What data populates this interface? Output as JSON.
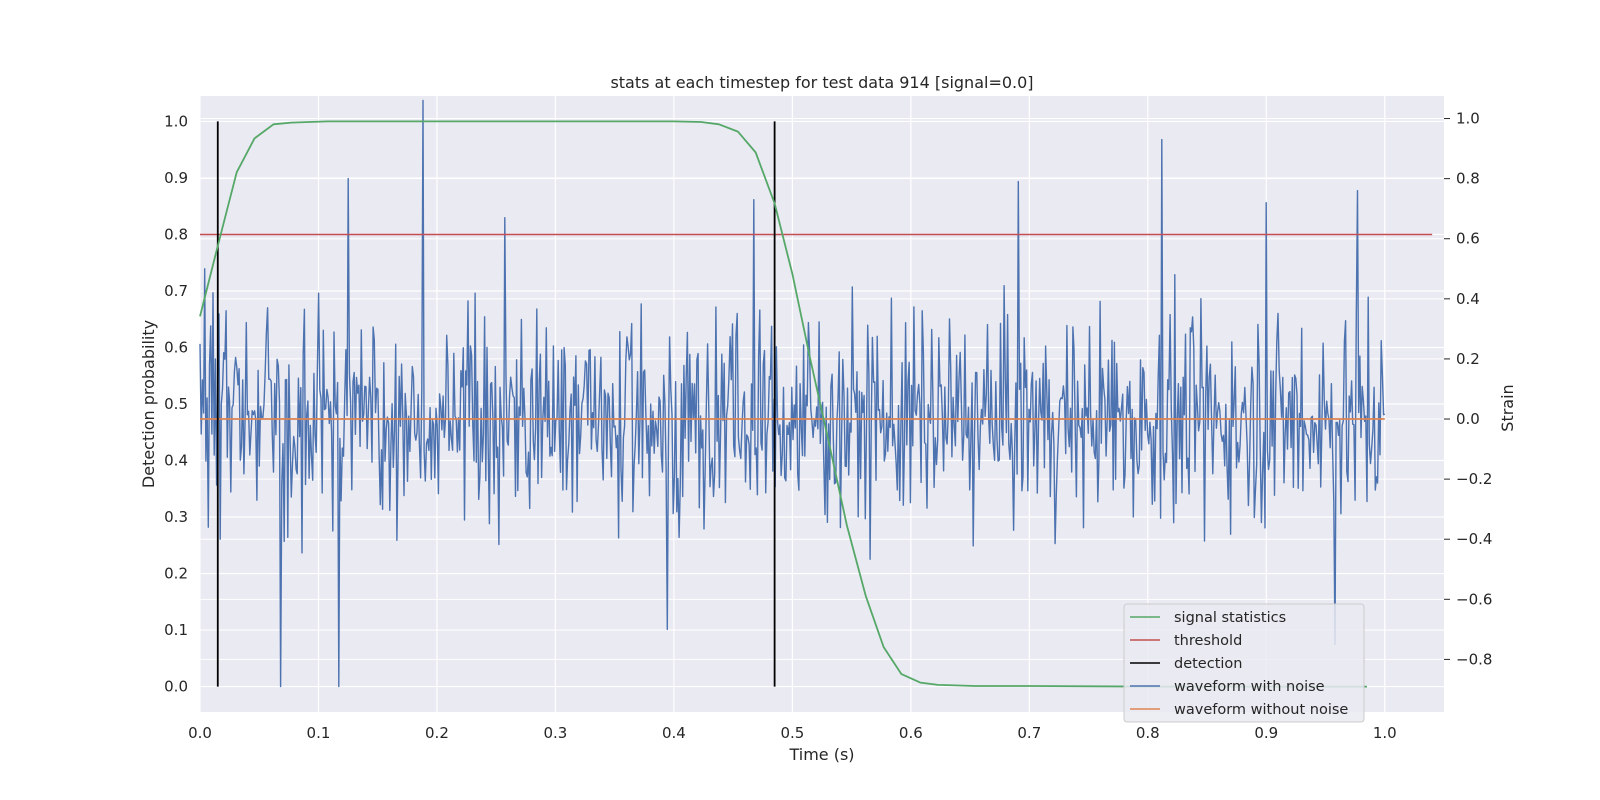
{
  "chart_data": {
    "type": "line",
    "title": "stats at each timestep for test data 914 [signal=0.0]",
    "xlabel": "Time (s)",
    "ylabel_left": "Detection probability",
    "ylabel_right": "Strain",
    "xlim": [
      0.0,
      1.05
    ],
    "ylim_left": [
      -0.045,
      1.045
    ],
    "ylim_right": [
      -0.975,
      1.075
    ],
    "x_ticks": [
      0.0,
      0.1,
      0.2,
      0.3,
      0.4,
      0.5,
      0.6,
      0.7,
      0.8,
      0.9,
      1.0
    ],
    "x_tick_labels": [
      "0.0",
      "0.1",
      "0.2",
      "0.3",
      "0.4",
      "0.5",
      "0.6",
      "0.7",
      "0.8",
      "0.9",
      "1.0"
    ],
    "y_left_ticks": [
      0.0,
      0.1,
      0.2,
      0.3,
      0.4,
      0.5,
      0.6,
      0.7,
      0.8,
      0.9,
      1.0
    ],
    "y_left_tick_labels": [
      "0.0",
      "0.1",
      "0.2",
      "0.3",
      "0.4",
      "0.5",
      "0.6",
      "0.7",
      "0.8",
      "0.9",
      "1.0"
    ],
    "y_right_ticks": [
      -0.8,
      -0.6,
      -0.4,
      -0.2,
      0.0,
      0.2,
      0.4,
      0.6,
      0.8,
      1.0
    ],
    "y_right_tick_labels": [
      "−0.8",
      "−0.6",
      "−0.4",
      "−0.2",
      "0.0",
      "0.2",
      "0.4",
      "0.6",
      "0.8",
      "1.0"
    ],
    "grid": true,
    "legend_position": "lower-right",
    "series": [
      {
        "name": "signal statistics",
        "axis": "left",
        "color": "#55a868",
        "x": [
          0.0,
          0.015,
          0.031,
          0.046,
          0.062,
          0.077,
          0.092,
          0.108,
          0.2,
          0.3,
          0.4,
          0.423,
          0.438,
          0.454,
          0.469,
          0.485,
          0.5,
          0.515,
          0.531,
          0.546,
          0.562,
          0.577,
          0.592,
          0.608,
          0.623,
          0.638,
          0.654,
          0.7,
          0.8,
          0.9,
          0.985
        ],
        "y": [
          0.655,
          0.78,
          0.91,
          0.97,
          0.995,
          0.998,
          0.999,
          1.0,
          1.0,
          1.0,
          1.0,
          0.999,
          0.995,
          0.982,
          0.945,
          0.855,
          0.73,
          0.58,
          0.43,
          0.285,
          0.16,
          0.07,
          0.022,
          0.007,
          0.003,
          0.002,
          0.001,
          0.001,
          0.0,
          0.0,
          0.0
        ]
      },
      {
        "name": "threshold",
        "axis": "left",
        "color": "#c44e52",
        "x": [
          0.0,
          1.04
        ],
        "y": [
          0.8,
          0.8
        ]
      },
      {
        "name": "detection",
        "axis": "left",
        "color": "#000000",
        "segments": [
          {
            "x": 0.015,
            "y": [
              0.0,
              1.0
            ]
          },
          {
            "x": 0.485,
            "y": [
              0.0,
              1.0
            ]
          }
        ]
      },
      {
        "name": "waveform with noise",
        "axis": "right",
        "color": "#4c72b0",
        "x_range": [
          0.0,
          1.0
        ],
        "n_points": 1000,
        "y_sample": [
          0.25,
          -0.05,
          0.13,
          0.02,
          0.5,
          -0.14,
          0.07,
          -0.36,
          0.18,
          0.31,
          -0.05,
          0.42,
          -0.12,
          0.2,
          -0.22,
          0.14,
          0.35,
          -0.4,
          0.05,
          0.1
        ],
        "y_extent": [
          -0.89,
          1.06
        ],
        "peaks": [
          {
            "x": 0.068,
            "y": -0.89
          },
          {
            "x": 0.117,
            "y": -0.89
          },
          {
            "x": 0.125,
            "y": 0.8
          },
          {
            "x": 0.188,
            "y": 1.06
          },
          {
            "x": 0.257,
            "y": 0.67
          },
          {
            "x": 0.394,
            "y": -0.7
          },
          {
            "x": 0.467,
            "y": 0.73
          },
          {
            "x": 0.691,
            "y": 0.79
          },
          {
            "x": 0.812,
            "y": 0.93
          },
          {
            "x": 0.9,
            "y": 0.72
          },
          {
            "x": 0.958,
            "y": -0.75
          },
          {
            "x": 0.977,
            "y": 0.76
          }
        ]
      },
      {
        "name": "waveform without noise",
        "axis": "right",
        "color": "#dd8452",
        "x": [
          0.0,
          1.0
        ],
        "y": [
          0.0,
          0.0
        ]
      }
    ]
  }
}
